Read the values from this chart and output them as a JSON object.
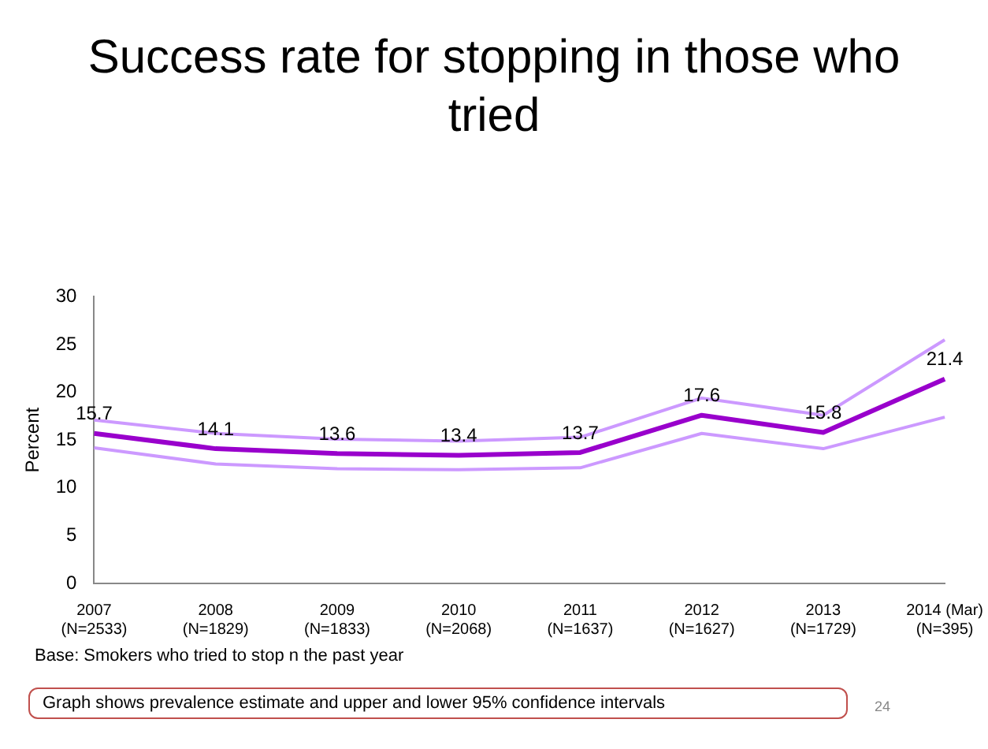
{
  "chart_data": {
    "type": "line",
    "title": "Success rate for stopping in those who tried",
    "ylabel": "Percent",
    "categories": [
      "2007\n(N=2533)",
      "2008\n(N=1829)",
      "2009\n(N=1833)",
      "2010\n(N=2068)",
      "2011\n(N=1637)",
      "2012\n(N=1627)",
      "2013\n(N=1729)",
      "2014 (Mar)\n(N=395)"
    ],
    "series": [
      {
        "color": "#cc99ff",
        "values": [
          14.2,
          12.5,
          12.0,
          11.9,
          12.1,
          15.7,
          14.1,
          17.4
        ]
      },
      {
        "color": "#cc99ff",
        "values": [
          17.1,
          15.7,
          15.1,
          14.9,
          15.3,
          19.4,
          17.6,
          25.5
        ]
      },
      {
        "color": "#9900cc",
        "values": [
          15.7,
          14.1,
          13.6,
          13.4,
          13.7,
          17.6,
          15.8,
          21.4
        ],
        "value_labels": [
          "15.7",
          "14.1",
          "13.6",
          "13.4",
          "13.7",
          "17.6",
          "15.8",
          "21.4"
        ]
      }
    ],
    "ylim": [
      0,
      30
    ],
    "yticks": [
      0,
      5,
      10,
      15,
      20,
      25,
      30
    ],
    "grid": false,
    "legend": false,
    "marker": "none",
    "line_style": "solid",
    "annotations": [
      "Base: Smokers who tried to stop n the past year",
      "Graph shows prevalence estimate and upper and lower 95% confidence intervals",
      "24"
    ]
  }
}
